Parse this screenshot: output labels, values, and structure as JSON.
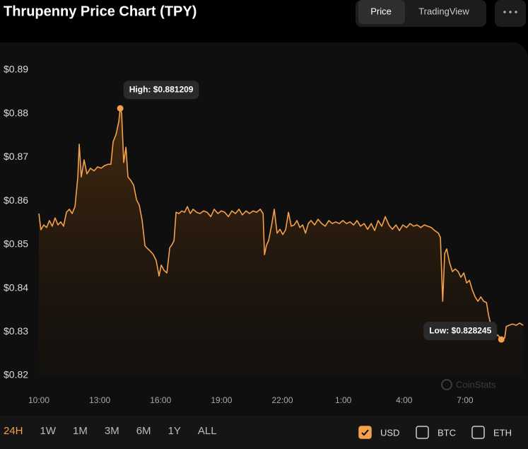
{
  "chart_data": {
    "type": "line",
    "title": "Thrupenny Price Chart (TPY)",
    "x": [
      0,
      0.1,
      0.24,
      0.38,
      0.52,
      0.66,
      0.8,
      0.94,
      1.08,
      1.22,
      1.36,
      1.5,
      1.64,
      1.78,
      1.92,
      1.99,
      2.09,
      2.23,
      2.37,
      2.54,
      2.72,
      2.89,
      3.07,
      3.24,
      3.41,
      3.55,
      3.66,
      3.8,
      3.94,
      4.01,
      4.08,
      4.18,
      4.29,
      4.39,
      4.53,
      4.67,
      4.81,
      4.95,
      5.09,
      5.23,
      5.37,
      5.51,
      5.64,
      5.78,
      5.92,
      6.03,
      6.17,
      6.31,
      6.45,
      6.55,
      6.66,
      6.76,
      6.9,
      7.04,
      7.18,
      7.32,
      7.46,
      7.6,
      7.77,
      7.94,
      8.12,
      8.29,
      8.47,
      8.64,
      8.82,
      8.99,
      9.16,
      9.34,
      9.51,
      9.69,
      9.86,
      10.03,
      10.21,
      10.38,
      10.56,
      10.73,
      10.91,
      11.05,
      11.12,
      11.22,
      11.32,
      11.46,
      11.6,
      11.74,
      11.88,
      12.02,
      12.16,
      12.3,
      12.44,
      12.58,
      12.72,
      12.86,
      13.0,
      13.14,
      13.28,
      13.41,
      13.59,
      13.76,
      13.94,
      14.11,
      14.29,
      14.46,
      14.63,
      14.81,
      14.98,
      15.16,
      15.33,
      15.51,
      15.68,
      15.85,
      16.03,
      16.2,
      16.38,
      16.55,
      16.72,
      16.9,
      17.07,
      17.25,
      17.42,
      17.6,
      17.77,
      17.94,
      18.12,
      18.29,
      18.47,
      18.64,
      18.82,
      18.99,
      19.16,
      19.34,
      19.51,
      19.69,
      19.79,
      19.9,
      20.0,
      20.1,
      20.24,
      20.38,
      20.52,
      20.66,
      20.8,
      20.94,
      21.08,
      21.22,
      21.36,
      21.5,
      21.64,
      21.78,
      21.92,
      22.06,
      22.16,
      22.3,
      22.47,
      22.61,
      22.79,
      22.96,
      23.03,
      23.17,
      23.34,
      23.52,
      23.69,
      23.87
    ],
    "series": [
      {
        "name": "USD",
        "color": "#f5a04a",
        "values": [
          0.8571,
          0.8534,
          0.8545,
          0.8539,
          0.8555,
          0.8542,
          0.8561,
          0.8545,
          0.8552,
          0.8542,
          0.8574,
          0.8581,
          0.8571,
          0.8587,
          0.8655,
          0.873,
          0.8655,
          0.8694,
          0.8662,
          0.8675,
          0.8669,
          0.8678,
          0.8675,
          0.8681,
          0.8684,
          0.8684,
          0.8736,
          0.8752,
          0.8782,
          0.881209,
          0.8801,
          0.8688,
          0.8723,
          0.8655,
          0.8647,
          0.8636,
          0.8603,
          0.859,
          0.8555,
          0.8497,
          0.849,
          0.8484,
          0.8477,
          0.8464,
          0.8428,
          0.8453,
          0.8441,
          0.8435,
          0.8493,
          0.8499,
          0.8509,
          0.8574,
          0.8571,
          0.8577,
          0.8574,
          0.8587,
          0.8571,
          0.8581,
          0.8574,
          0.8571,
          0.8577,
          0.8574,
          0.8564,
          0.8581,
          0.8571,
          0.8577,
          0.8574,
          0.8564,
          0.8577,
          0.8571,
          0.8581,
          0.8568,
          0.8577,
          0.8571,
          0.8577,
          0.8574,
          0.8581,
          0.8571,
          0.8477,
          0.8499,
          0.8509,
          0.8542,
          0.8581,
          0.8526,
          0.8535,
          0.8523,
          0.8534,
          0.8574,
          0.8542,
          0.8545,
          0.8555,
          0.8539,
          0.8545,
          0.8526,
          0.8548,
          0.8555,
          0.8545,
          0.8558,
          0.8548,
          0.8542,
          0.8555,
          0.8548,
          0.8552,
          0.8548,
          0.8555,
          0.8548,
          0.8552,
          0.8545,
          0.8555,
          0.8542,
          0.8548,
          0.8535,
          0.8548,
          0.8532,
          0.8555,
          0.8542,
          0.8564,
          0.8545,
          0.8535,
          0.8545,
          0.8532,
          0.8545,
          0.8539,
          0.8548,
          0.8542,
          0.8545,
          0.8539,
          0.8545,
          0.8542,
          0.8539,
          0.8532,
          0.8526,
          0.8516,
          0.837,
          0.848,
          0.849,
          0.8458,
          0.8438,
          0.8444,
          0.8438,
          0.8425,
          0.8435,
          0.8412,
          0.8418,
          0.8396,
          0.838,
          0.837,
          0.838,
          0.837,
          0.8367,
          0.8338,
          0.8312,
          0.8286,
          0.8293,
          0.828245,
          0.8286,
          0.8312,
          0.8315,
          0.8318,
          0.8315,
          0.832,
          0.8315
        ]
      }
    ],
    "high_label": "High: $0.881209",
    "low_label": "Low: $0.828245",
    "xlim": [
      0,
      24
    ],
    "xticks": [
      {
        "value": 0,
        "label": "10:00"
      },
      {
        "value": 3,
        "label": "13:00"
      },
      {
        "value": 6,
        "label": "16:00"
      },
      {
        "value": 9,
        "label": "19:00"
      },
      {
        "value": 12,
        "label": "22:00"
      },
      {
        "value": 15,
        "label": "1:00"
      },
      {
        "value": 18,
        "label": "4:00"
      },
      {
        "value": 21,
        "label": "7:00"
      }
    ],
    "ylim": [
      0.82,
      0.89
    ],
    "yticks": [
      {
        "value": 0.82,
        "label": "$0.82"
      },
      {
        "value": 0.83,
        "label": "$0.83"
      },
      {
        "value": 0.84,
        "label": "$0.84"
      },
      {
        "value": 0.85,
        "label": "$0.85"
      },
      {
        "value": 0.86,
        "label": "$0.86"
      },
      {
        "value": 0.87,
        "label": "$0.87"
      },
      {
        "value": 0.88,
        "label": "$0.88"
      },
      {
        "value": 0.89,
        "label": "$0.89"
      }
    ],
    "grid": false,
    "watermark": "CoinStats"
  },
  "ui": {
    "tabs": [
      "Price",
      "TradingView"
    ],
    "ranges": [
      "24H",
      "1W",
      "1M",
      "3M",
      "6M",
      "1Y",
      "ALL"
    ],
    "currencies": [
      "USD",
      "BTC",
      "ETH"
    ]
  }
}
